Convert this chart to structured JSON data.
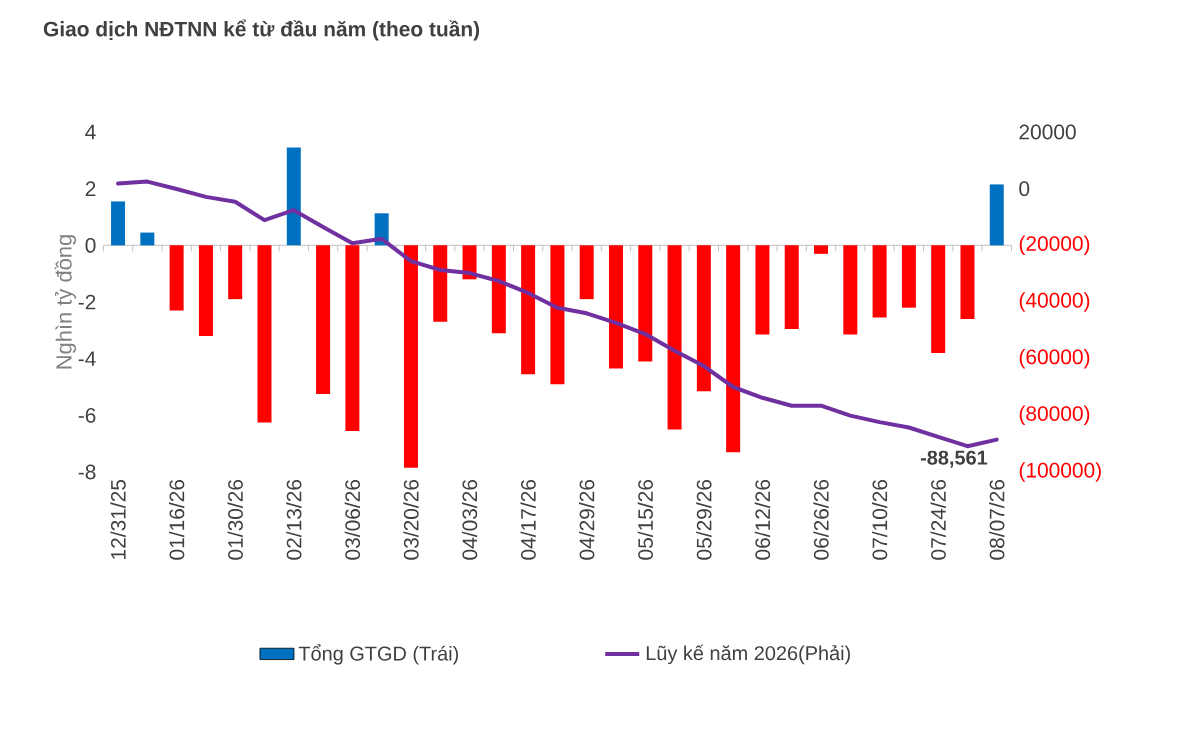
{
  "chart_data": {
    "type": "bar",
    "title": "Giao dịch NĐTNN kể từ đầu năm (theo tuần)",
    "ylabel": "Nghìn tỷ đồng",
    "categories": [
      "12/31/25",
      null,
      "01/16/26",
      null,
      "01/30/26",
      null,
      "02/13/26",
      null,
      "03/06/26",
      null,
      "03/20/26",
      null,
      "04/03/26",
      null,
      "04/17/26",
      null,
      "04/29/26",
      null,
      "05/15/26",
      null,
      "05/29/26",
      null,
      "06/12/26",
      null,
      "06/26/26",
      null,
      "07/10/26",
      null,
      "07/24/26",
      null,
      "08/07/26"
    ],
    "series": [
      {
        "name": "Tổng GTGD (Trái)",
        "color": "#0070c0",
        "values": [
          1.55,
          0.45,
          -2.3,
          -3.2,
          -1.9,
          -6.25,
          3.45,
          -5.25,
          -6.55,
          1.13,
          -7.85,
          -2.7,
          -1.2,
          -3.1,
          -4.55,
          -4.9,
          -1.9,
          -4.35,
          -4.1,
          -6.5,
          -5.15,
          -7.3,
          -3.15,
          -2.95,
          -0.3,
          -3.15,
          -2.55,
          -2.2,
          -3.8,
          -2.6,
          2.15
        ],
        "colors": [
          "#0070c0",
          "#0070c0",
          "#ff0000",
          "#ff0000",
          "#ff0000",
          "#ff0000",
          "#0070c0",
          "#ff0000",
          "#ff0000",
          "#0070c0",
          "#ff0000",
          "#ff0000",
          "#ff0000",
          "#ff0000",
          "#ff0000",
          "#ff0000",
          "#ff0000",
          "#ff0000",
          "#ff0000",
          "#ff0000",
          "#ff0000",
          "#ff0000",
          "#ff0000",
          "#ff0000",
          "#ff0000",
          "#ff0000",
          "#ff0000",
          "#ff0000",
          "#ff0000",
          "#ff0000",
          "#0070c0"
        ]
      },
      {
        "name": "Lũy kế năm  2026(Phải)",
        "type": "line",
        "axis": "y2",
        "color": "#7030a0",
        "values": [
          1800,
          2500,
          -100,
          -2900,
          -4600,
          -11100,
          -7600,
          -13500,
          -19300,
          -17700,
          -25600,
          -28700,
          -29800,
          -32600,
          -36800,
          -42000,
          -44000,
          -47400,
          -51300,
          -57200,
          -62600,
          -70000,
          -73800,
          -76600,
          -76600,
          -80100,
          -82400,
          -84300,
          -87600,
          -90900,
          -88561
        ],
        "value_labels": [
          null,
          null,
          null,
          null,
          null,
          null,
          null,
          null,
          null,
          null,
          null,
          null,
          null,
          null,
          null,
          null,
          null,
          null,
          null,
          null,
          null,
          null,
          null,
          null,
          null,
          null,
          null,
          null,
          null,
          null,
          "-88,561"
        ]
      }
    ],
    "ylim": [
      -8,
      4
    ],
    "yticks": [
      -8,
      -6,
      -4,
      -2,
      0,
      2,
      4
    ],
    "y2lim": [
      -100000,
      20000
    ],
    "y2ticks": [
      {
        "value": -100000,
        "label": "(100000)"
      },
      {
        "value": -80000,
        "label": "(80000)"
      },
      {
        "value": -60000,
        "label": "(60000)"
      },
      {
        "value": -40000,
        "label": "(40000)"
      },
      {
        "value": -20000,
        "label": "(20000)"
      },
      0,
      20000
    ],
    "legend": "bottom"
  }
}
